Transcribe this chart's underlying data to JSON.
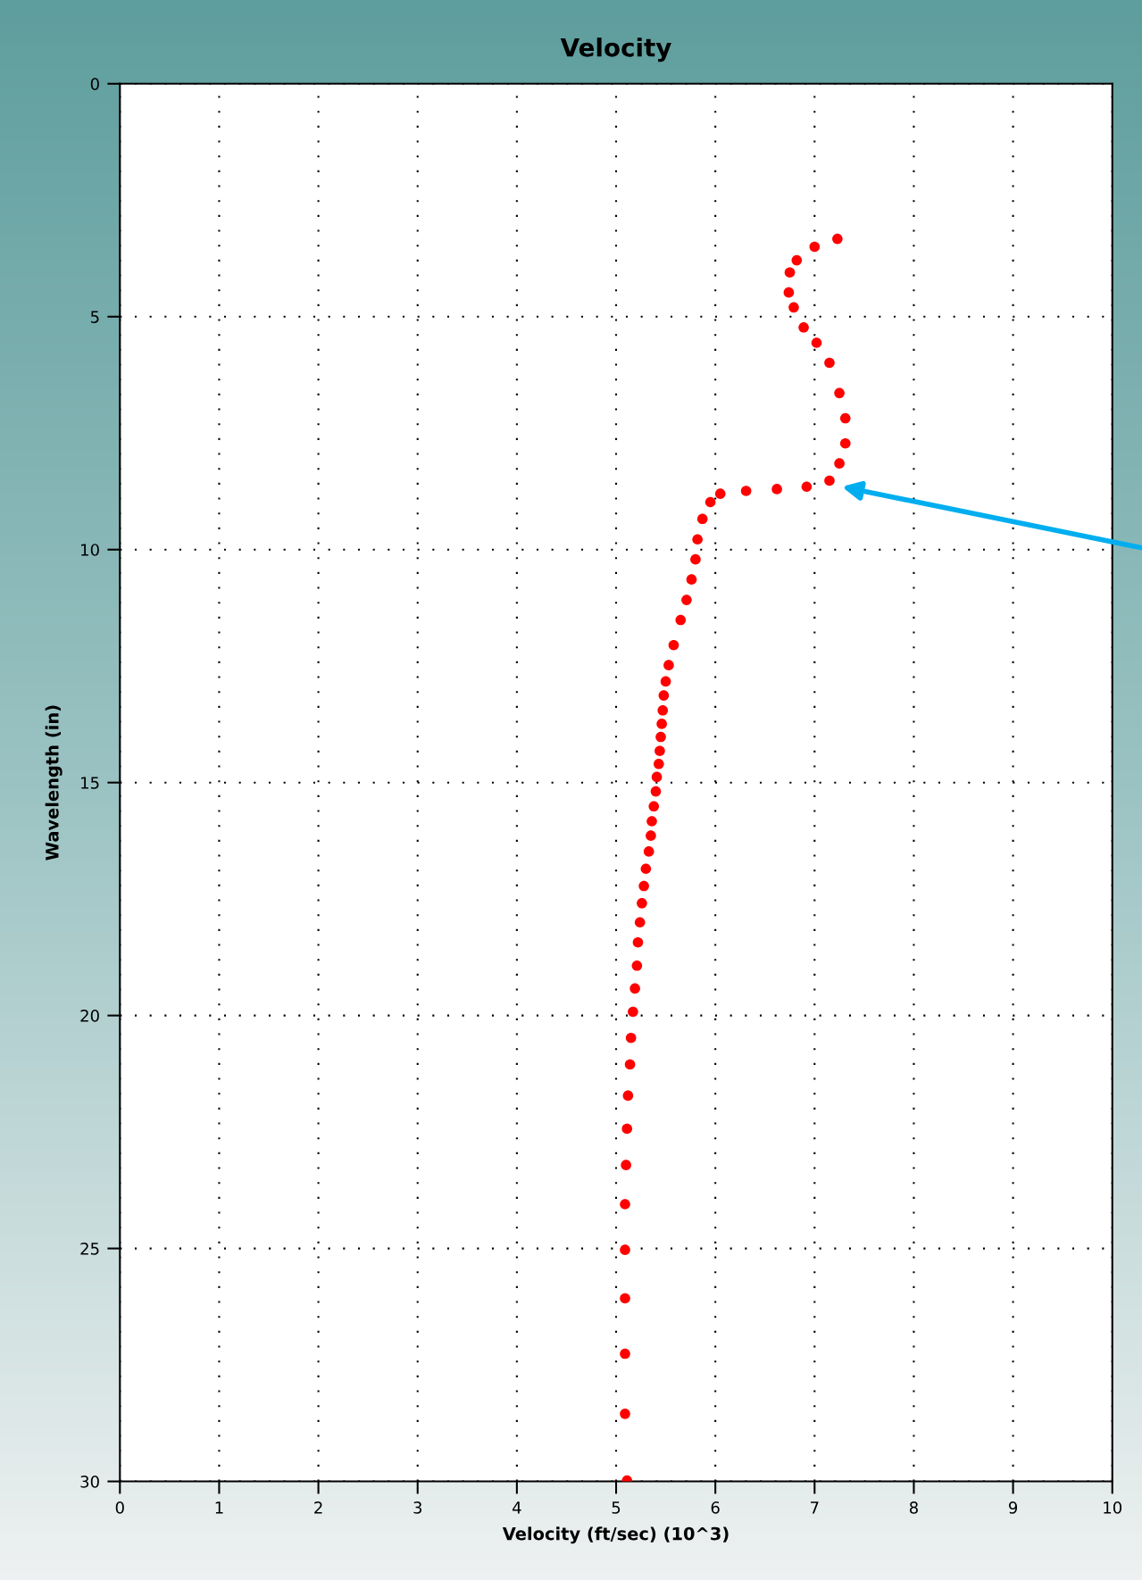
{
  "chart_data": {
    "type": "scatter",
    "title": "Velocity",
    "xlabel": "Velocity (ft/sec) (10^3)",
    "ylabel": "Wavelength (in)",
    "xlim": [
      0,
      10
    ],
    "xticks": [
      0,
      1,
      2,
      3,
      4,
      5,
      6,
      7,
      8,
      9,
      10
    ],
    "ylim": [
      30,
      0
    ],
    "yticks": [
      0,
      5,
      10,
      15,
      20,
      25,
      30
    ],
    "grid": true,
    "marker": "circle",
    "series": [
      {
        "color": "#ff0000",
        "x": [
          7.23,
          7.0,
          6.82,
          6.75,
          6.74,
          6.79,
          6.89,
          7.02,
          7.15,
          7.25,
          7.31,
          7.31,
          7.25,
          7.15,
          6.92,
          6.62,
          6.31,
          6.05,
          5.95,
          5.87,
          5.82,
          5.8,
          5.76,
          5.71,
          5.65,
          5.58,
          5.53,
          5.5,
          5.48,
          5.47,
          5.46,
          5.45,
          5.44,
          5.43,
          5.41,
          5.4,
          5.38,
          5.36,
          5.35,
          5.33,
          5.3,
          5.28,
          5.26,
          5.24,
          5.22,
          5.21,
          5.19,
          5.17,
          5.15,
          5.14,
          5.12,
          5.11,
          5.1,
          5.09,
          5.09,
          5.09,
          5.09,
          5.09,
          5.11
        ],
        "values": [
          3.33,
          3.5,
          3.79,
          4.05,
          4.48,
          4.8,
          5.23,
          5.56,
          5.99,
          6.64,
          7.18,
          7.72,
          8.15,
          8.52,
          8.65,
          8.7,
          8.74,
          8.8,
          8.98,
          9.34,
          9.78,
          10.21,
          10.64,
          11.08,
          11.51,
          12.05,
          12.48,
          12.83,
          13.13,
          13.45,
          13.74,
          14.02,
          14.32,
          14.6,
          14.88,
          15.19,
          15.51,
          15.83,
          16.14,
          16.48,
          16.85,
          17.22,
          17.59,
          18.0,
          18.43,
          18.93,
          19.42,
          19.92,
          20.48,
          21.05,
          21.72,
          22.43,
          23.21,
          24.05,
          25.03,
          26.07,
          27.26,
          28.55,
          29.98
        ]
      }
    ]
  }
}
